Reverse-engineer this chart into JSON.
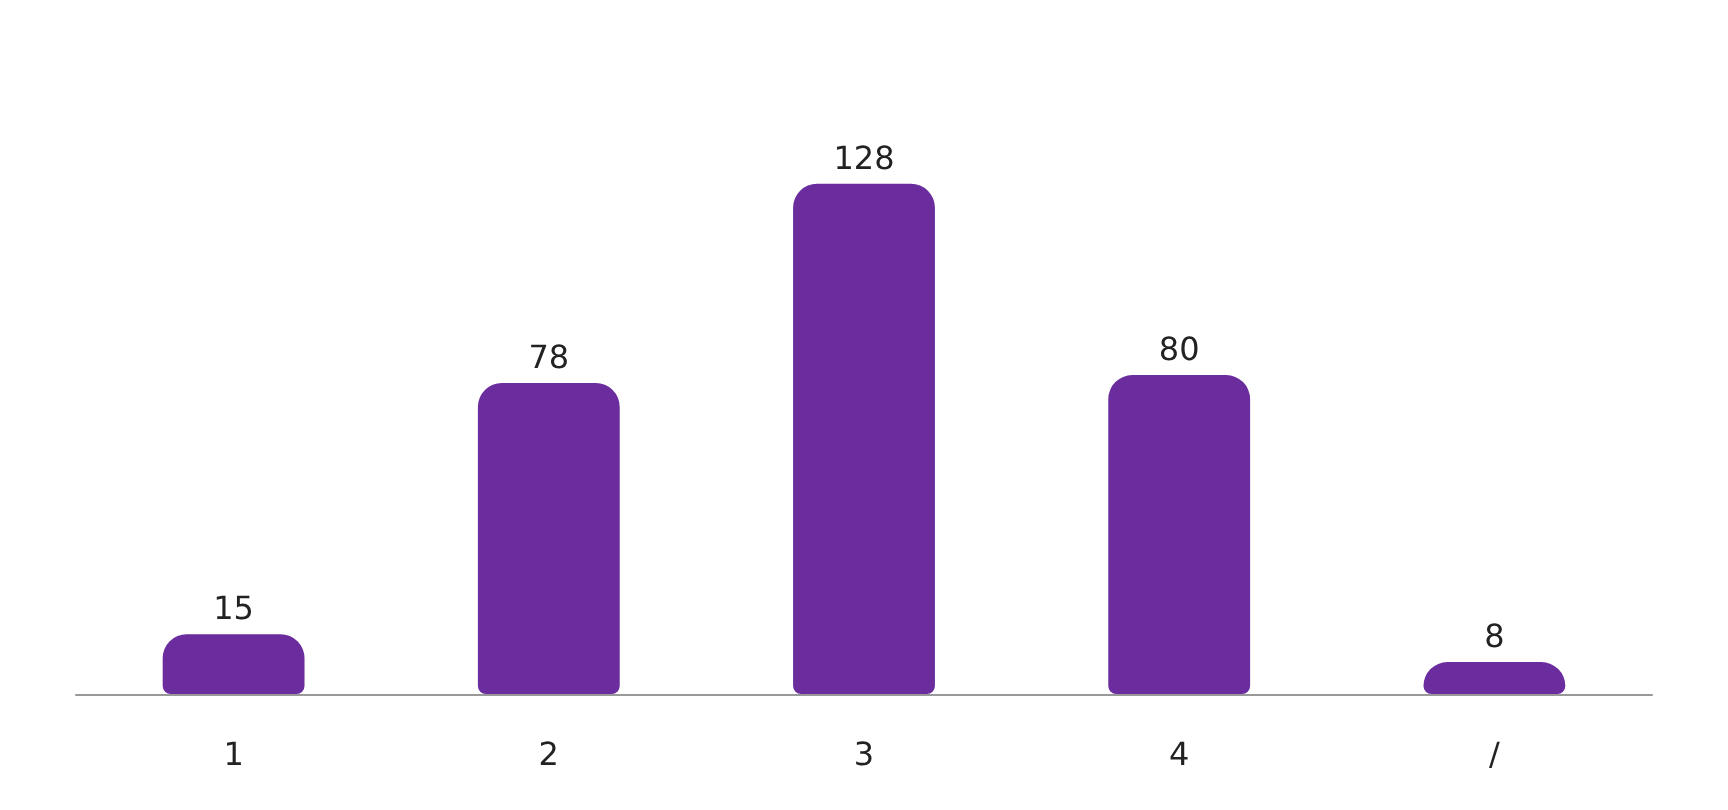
{
  "chart_data": {
    "type": "bar",
    "categories": [
      "1",
      "2",
      "3",
      "4",
      "/"
    ],
    "values": [
      15,
      78,
      128,
      80,
      8
    ],
    "color": "#6b2c9e",
    "data_labels": true
  }
}
